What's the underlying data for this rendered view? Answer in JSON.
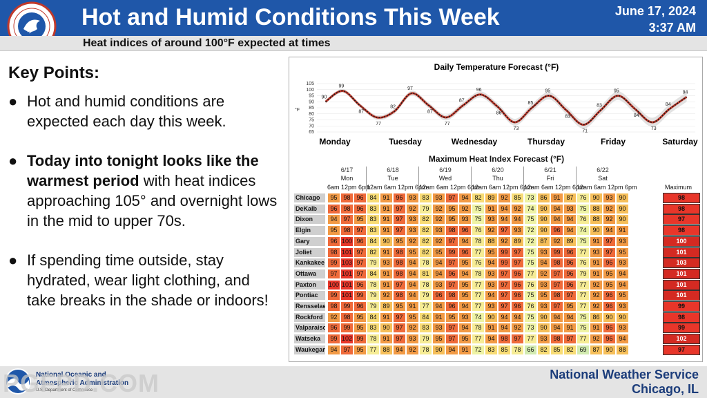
{
  "header": {
    "title": "Hot and Humid Conditions This Week",
    "subtitle": "Heat indices of around 100°F expected at times",
    "date": "June 17, 2024",
    "time": "3:37 AM"
  },
  "logo": {
    "icon": "nws-logo",
    "ring_text": "NATIONAL WEATHER SERVICE"
  },
  "key_points": {
    "title": "Key Points:",
    "items": [
      {
        "bold": "",
        "text": "Hot and humid conditions are expected each day this week."
      },
      {
        "bold": "Today into tonight looks like the warmest period",
        "text": " with heat indices approaching 105° and overnight lows in the mid to upper 70s."
      },
      {
        "bold": "",
        "text": "If spending time outside, stay hydrated, wear light clothing, and take breaks in the shade or indoors!"
      }
    ]
  },
  "temp_chart": {
    "title": "Daily Temperature Forecast (°F)",
    "ylabel": "°F",
    "y_ticks": [
      "105",
      "100",
      "95",
      "90",
      "85",
      "80",
      "75",
      "70",
      "65"
    ],
    "days": [
      "Monday",
      "Tuesday",
      "Wednesday",
      "Thursday",
      "Friday",
      "Saturday"
    ],
    "value_labels": [
      "90",
      "99",
      "87",
      "77",
      "82",
      "97",
      "87",
      "77",
      "87",
      "96",
      "86",
      "73",
      "85",
      "95",
      "83",
      "71",
      "83",
      "95",
      "84",
      "73",
      "84",
      "94"
    ]
  },
  "chart_data": {
    "type": "line",
    "title": "Daily Temperature Forecast (°F)",
    "ylabel": "°F",
    "ylim": [
      65,
      105
    ],
    "x_categories": [
      "Monday",
      "Tuesday",
      "Wednesday",
      "Thursday",
      "Friday",
      "Saturday"
    ],
    "series": [
      {
        "points": [
          {
            "t": "Mon early",
            "y": 90
          },
          {
            "t": "Mon afternoon",
            "y": 99
          },
          {
            "t": "Mon evening",
            "y": 87
          },
          {
            "t": "Tue early",
            "y": 77
          },
          {
            "t": "Tue morning",
            "y": 82
          },
          {
            "t": "Tue afternoon",
            "y": 97
          },
          {
            "t": "Tue evening",
            "y": 87
          },
          {
            "t": "Wed early",
            "y": 77
          },
          {
            "t": "Wed morning",
            "y": 87
          },
          {
            "t": "Wed afternoon",
            "y": 96
          },
          {
            "t": "Wed evening",
            "y": 86
          },
          {
            "t": "Thu early",
            "y": 73
          },
          {
            "t": "Thu morning",
            "y": 85
          },
          {
            "t": "Thu afternoon",
            "y": 95
          },
          {
            "t": "Thu evening",
            "y": 83
          },
          {
            "t": "Fri early",
            "y": 71
          },
          {
            "t": "Fri morning",
            "y": 83
          },
          {
            "t": "Fri afternoon",
            "y": 95
          },
          {
            "t": "Fri evening",
            "y": 84
          },
          {
            "t": "Sat early",
            "y": 73
          },
          {
            "t": "Sat morning",
            "y": 84
          },
          {
            "t": "Sat afternoon",
            "y": 94
          }
        ]
      }
    ],
    "heat_index_table": {
      "title": "Maximum Heat Index Forecast (°F)",
      "dates": [
        "6/17",
        "6/18",
        "6/19",
        "6/20",
        "6/21",
        "6/22"
      ],
      "days": [
        "Mon",
        "Tue",
        "Wed",
        "Thu",
        "Fri",
        "Sat"
      ],
      "max_label": "Maximum",
      "rows": [
        {
          "city": "Chicago",
          "values": [
            95,
            98,
            96,
            84,
            91,
            96,
            93,
            83,
            93,
            97,
            94,
            82,
            89,
            92,
            85,
            73,
            86,
            91,
            87,
            76,
            90,
            93,
            90
          ],
          "max": 98
        },
        {
          "city": "DeKalb",
          "values": [
            96,
            98,
            96,
            83,
            91,
            97,
            92,
            79,
            92,
            95,
            92,
            75,
            91,
            94,
            92,
            74,
            90,
            94,
            93,
            75,
            88,
            92,
            90
          ],
          "max": 98
        },
        {
          "city": "Dixon",
          "values": [
            94,
            97,
            95,
            83,
            91,
            97,
            93,
            82,
            92,
            95,
            93,
            75,
            93,
            94,
            94,
            75,
            90,
            94,
            94,
            76,
            88,
            92,
            90
          ],
          "max": 97
        },
        {
          "city": "Elgin",
          "values": [
            95,
            98,
            97,
            83,
            91,
            97,
            93,
            82,
            93,
            98,
            96,
            76,
            92,
            97,
            93,
            72,
            90,
            96,
            94,
            74,
            90,
            94,
            91
          ],
          "max": 98
        },
        {
          "city": "Gary",
          "values": [
            96,
            100,
            96,
            84,
            90,
            95,
            92,
            82,
            92,
            97,
            94,
            78,
            88,
            92,
            89,
            72,
            87,
            92,
            89,
            75,
            91,
            97,
            93
          ],
          "max": 100
        },
        {
          "city": "Joliet",
          "values": [
            98,
            101,
            97,
            82,
            91,
            98,
            95,
            82,
            95,
            99,
            96,
            77,
            95,
            99,
            97,
            75,
            93,
            99,
            96,
            77,
            93,
            97,
            95
          ],
          "max": 101
        },
        {
          "city": "Kankakee",
          "values": [
            99,
            103,
            97,
            79,
            93,
            98,
            94,
            78,
            94,
            97,
            95,
            76,
            94,
            99,
            97,
            75,
            94,
            98,
            96,
            76,
            91,
            96,
            93
          ],
          "max": 103
        },
        {
          "city": "Ottawa",
          "values": [
            97,
            101,
            97,
            84,
            91,
            98,
            94,
            81,
            94,
            96,
            94,
            78,
            93,
            97,
            96,
            77,
            92,
            97,
            96,
            79,
            91,
            95,
            94
          ],
          "max": 101
        },
        {
          "city": "Paxton",
          "values": [
            100,
            101,
            96,
            78,
            91,
            97,
            94,
            78,
            93,
            97,
            95,
            77,
            93,
            97,
            96,
            76,
            93,
            97,
            96,
            77,
            92,
            95,
            94
          ],
          "max": 101
        },
        {
          "city": "Pontiac",
          "values": [
            99,
            101,
            99,
            79,
            92,
            98,
            94,
            79,
            96,
            98,
            95,
            77,
            94,
            97,
            96,
            75,
            95,
            98,
            97,
            77,
            92,
            96,
            95
          ],
          "max": 101
        },
        {
          "city": "Rensselaer",
          "values": [
            98,
            99,
            96,
            79,
            89,
            95,
            91,
            77,
            94,
            96,
            94,
            77,
            93,
            97,
            96,
            76,
            93,
            97,
            95,
            77,
            92,
            96,
            93
          ],
          "max": 99
        },
        {
          "city": "Rockford",
          "values": [
            92,
            98,
            95,
            84,
            91,
            97,
            95,
            84,
            91,
            95,
            93,
            74,
            90,
            94,
            94,
            75,
            90,
            94,
            94,
            75,
            86,
            90,
            90
          ],
          "max": 98
        },
        {
          "city": "Valparaiso",
          "values": [
            96,
            99,
            95,
            83,
            90,
            97,
            92,
            83,
            93,
            97,
            94,
            78,
            91,
            94,
            92,
            73,
            90,
            94,
            91,
            75,
            91,
            96,
            93
          ],
          "max": 99
        },
        {
          "city": "Watseka",
          "values": [
            99,
            102,
            99,
            78,
            91,
            97,
            93,
            79,
            95,
            97,
            95,
            77,
            94,
            98,
            97,
            77,
            93,
            98,
            97,
            77,
            92,
            96,
            94
          ],
          "max": 102
        },
        {
          "city": "Waukegan",
          "values": [
            94,
            97,
            95,
            77,
            88,
            94,
            92,
            78,
            90,
            94,
            91,
            72,
            83,
            85,
            78,
            66,
            82,
            85,
            82,
            69,
            87,
            90,
            88
          ],
          "max": 97
        }
      ]
    }
  },
  "heat_table": {
    "title": "Maximum Heat Index Forecast (°F)",
    "max_label": "Maximum",
    "times_first": "6am 12pm 6pm",
    "times_full": "12am 6am 12pm 6pm",
    "days": [
      {
        "date": "6/17",
        "day": "Mon"
      },
      {
        "date": "6/18",
        "day": "Tue"
      },
      {
        "date": "6/19",
        "day": "Wed"
      },
      {
        "date": "6/20",
        "day": "Thu"
      },
      {
        "date": "6/21",
        "day": "Fri"
      },
      {
        "date": "6/22",
        "day": "Sat"
      }
    ]
  },
  "footer": {
    "noaa_line1": "National Oceanic and",
    "noaa_line2": "Atmospheric Administration",
    "noaa_line3": "U.S. Department of Commerce",
    "watermark": "PGFPD.COM",
    "office_name": "National Weather Service",
    "office_location": "Chicago, IL"
  },
  "colors": {
    "header_blue": "#1f57a9",
    "footer_text": "#1b3c7a",
    "line_red": "#c0392b"
  }
}
